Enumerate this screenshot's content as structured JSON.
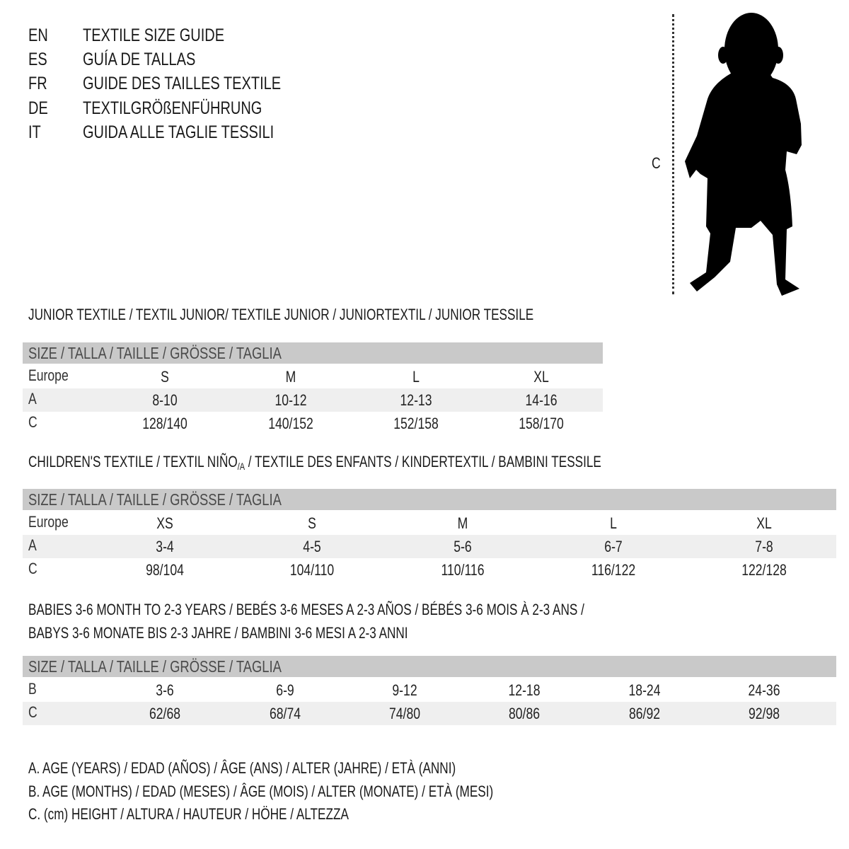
{
  "header": {
    "lines": [
      {
        "code": "EN",
        "title": "TEXTILE SIZE GUIDE"
      },
      {
        "code": "ES",
        "title": "GUÍA DE TALLAS"
      },
      {
        "code": "FR",
        "title": "GUIDE DES TAILLES TEXTILE"
      },
      {
        "code": "DE",
        "title": "TEXTILGRÖßENFÜHRUNG"
      },
      {
        "code": "IT",
        "title": "GUIDA ALLE TAGLIE TESSILI"
      }
    ]
  },
  "figure": {
    "label": "C",
    "icon": "child-silhouette"
  },
  "colors": {
    "header_band": "#c9c9c9",
    "alt_row": "#efefef",
    "text": "#1a1a1a"
  },
  "sections": [
    {
      "heading": [
        "JUNIOR TEXTILE / TEXTIL JUNIOR/ TEXTILE JUNIOR / JUNIORTEXTIL / JUNIOR TESSILE"
      ],
      "size_header": "SIZE / TALLA / TAILLE / GRÖSSE / TAGLIA",
      "rows": [
        {
          "label": "Europe",
          "values": [
            "S",
            "M",
            "L",
            "XL"
          ]
        },
        {
          "label": "A",
          "values": [
            "8-10",
            "10-12",
            "12-13",
            "14-16"
          ]
        },
        {
          "label": "C",
          "values": [
            "128/140",
            "140/152",
            "152/158",
            "158/170"
          ]
        }
      ]
    },
    {
      "heading_parts": {
        "before": "CHILDREN'S TEXTILE / TEXTIL NIÑO",
        "sub": "/A",
        "after": " / TEXTILE DES ENFANTS / KINDERTEXTIL / BAMBINI TESSILE"
      },
      "size_header": "SIZE / TALLA / TAILLE / GRÖSSE / TAGLIA",
      "rows": [
        {
          "label": "Europe",
          "values": [
            "XS",
            "S",
            "M",
            "L",
            "XL"
          ]
        },
        {
          "label": "A",
          "values": [
            "3-4",
            "4-5",
            "5-6",
            "6-7",
            "7-8"
          ]
        },
        {
          "label": "C",
          "values": [
            "98/104",
            "104/110",
            "110/116",
            "116/122",
            "122/128"
          ]
        }
      ]
    },
    {
      "heading": [
        "BABIES 3-6 MONTH TO 2-3 YEARS / BEBÉS 3-6 MESES A 2-3 AÑOS / BÉBÉS 3-6 MOIS À 2-3 ANS /",
        "BABYS 3-6 MONATE BIS 2-3 JAHRE / BAMBINI 3-6 MESI A 2-3 ANNI"
      ],
      "size_header": "SIZE / TALLA / TAILLE / GRÖSSE / TAGLIA",
      "rows": [
        {
          "label": "B",
          "values": [
            "3-6",
            "6-9",
            "9-12",
            "12-18",
            "18-24",
            "24-36"
          ]
        },
        {
          "label": "C",
          "values": [
            "62/68",
            "68/74",
            "74/80",
            "80/86",
            "86/92",
            "92/98"
          ]
        }
      ]
    }
  ],
  "legend": [
    "A. AGE (YEARS) / EDAD (AÑOS) / ÂGE (ANS) / ALTER (JAHRE) / ETÀ (ANNI)",
    "B. AGE (MONTHS) / EDAD (MESES) / ÂGE (MOIS) / ALTER (MONATE) / ETÀ (MESI)",
    "C. (cm) HEIGHT / ALTURA / HAUTEUR / HÖHE / ALTEZZA"
  ]
}
